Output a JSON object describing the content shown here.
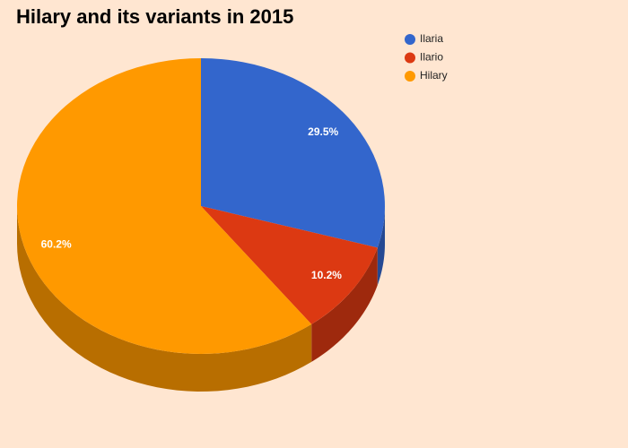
{
  "chart_data": {
    "type": "pie",
    "title": "Hilary and its variants in 2015",
    "categories": [
      "Ilaria",
      "Ilario",
      "Hilary"
    ],
    "values": [
      29.5,
      10.2,
      60.2
    ],
    "value_labels": [
      "29.5%",
      "10.2%",
      "60.2%"
    ],
    "colors": [
      "#3366cc",
      "#dc3912",
      "#ff9900"
    ],
    "legend": "top-right"
  }
}
